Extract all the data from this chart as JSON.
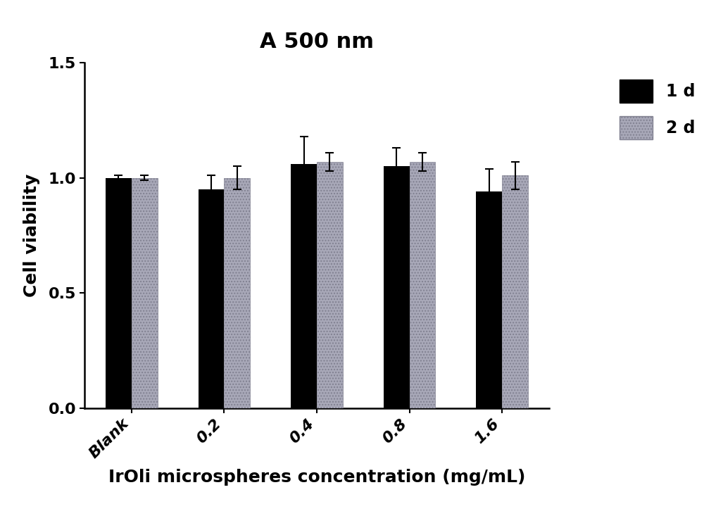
{
  "title": "A 500 nm",
  "xlabel": "IrOli microspheres concentration (mg/mL)",
  "ylabel": "Cell viability",
  "categories": [
    "Blank",
    "0.2",
    "0.4",
    "0.8",
    "1.6"
  ],
  "day1_values": [
    1.0,
    0.95,
    1.06,
    1.05,
    0.94
  ],
  "day2_values": [
    1.0,
    1.0,
    1.07,
    1.07,
    1.01
  ],
  "day1_errors": [
    0.01,
    0.06,
    0.12,
    0.08,
    0.1
  ],
  "day2_errors": [
    0.01,
    0.05,
    0.04,
    0.04,
    0.06
  ],
  "day1_color": "#000000",
  "day2_color": "#a8a8b8",
  "ylim": [
    0.0,
    1.5
  ],
  "yticks": [
    0.0,
    0.5,
    1.0,
    1.5
  ],
  "bar_width": 0.28,
  "legend_labels": [
    "1 d",
    "2 d"
  ],
  "title_fontsize": 22,
  "label_fontsize": 18,
  "tick_fontsize": 16,
  "legend_fontsize": 17,
  "background_color": "#ffffff",
  "x_tick_rotation": 45
}
